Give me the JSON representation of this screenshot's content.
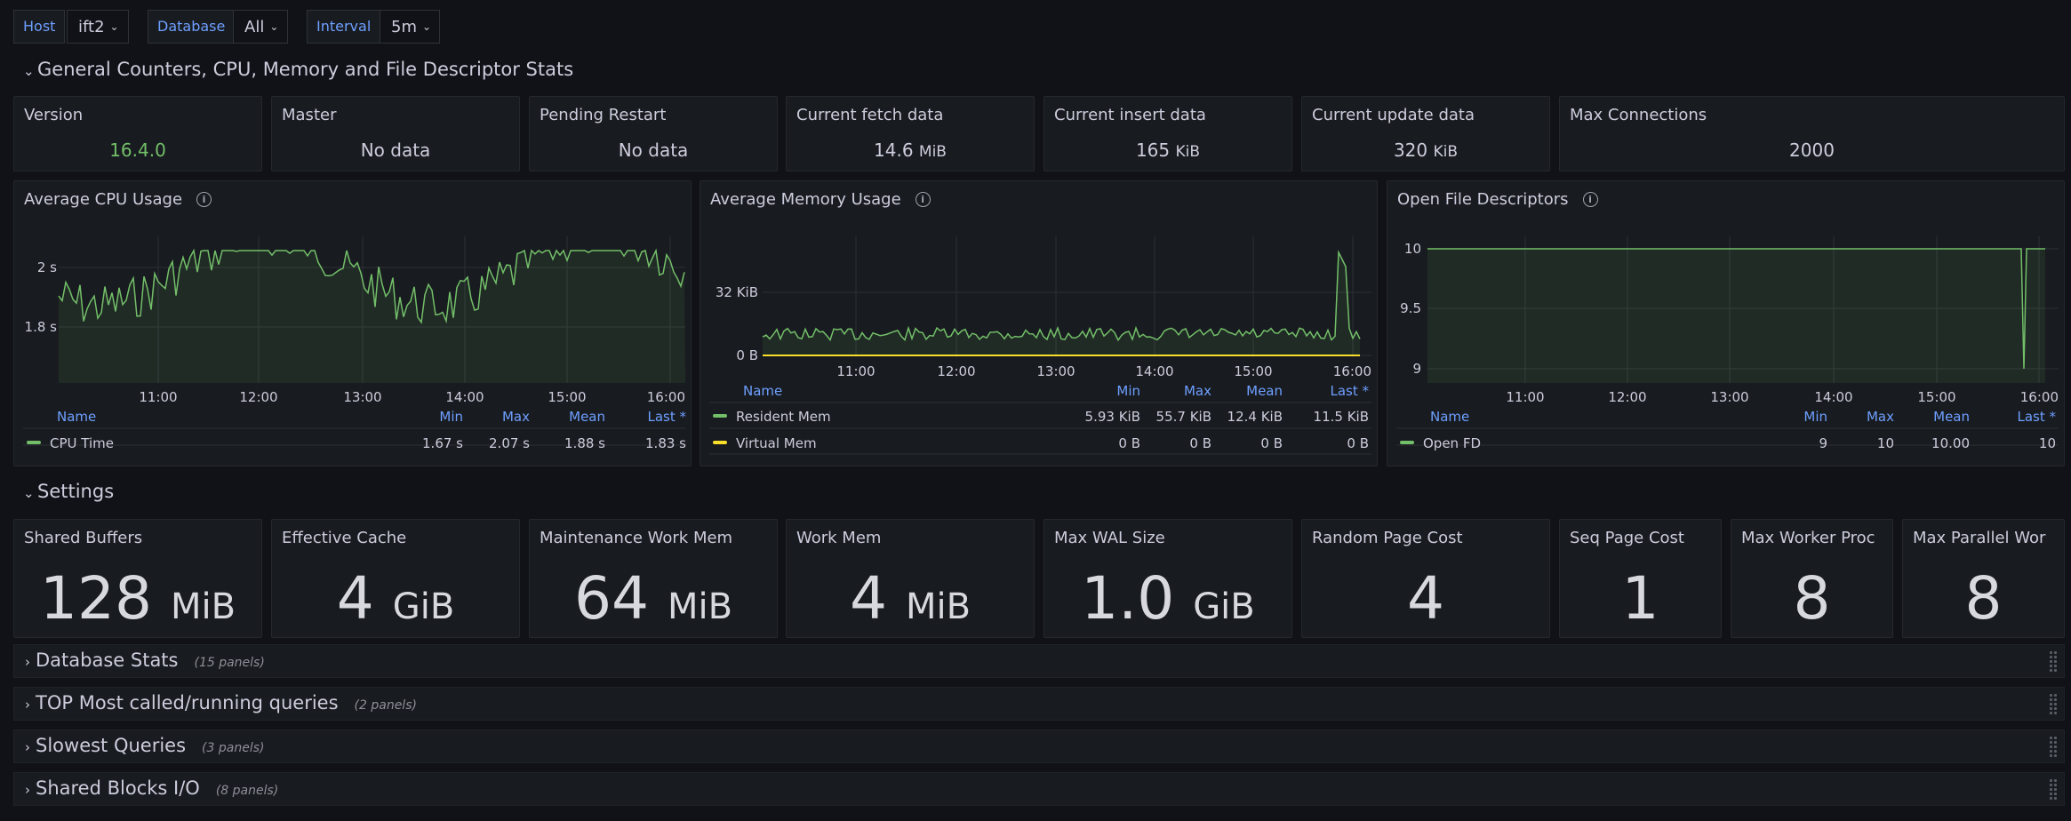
{
  "vars": [
    {
      "label": "Host",
      "value": "ift2"
    },
    {
      "label": "Database",
      "value": "All"
    },
    {
      "label": "Interval",
      "value": "5m"
    }
  ],
  "rows": {
    "general": "General Counters, CPU, Memory and File Descriptor Stats",
    "settings": "Settings"
  },
  "stats": [
    {
      "title": "Version",
      "value": "16.4.0",
      "unit": "",
      "color": "#73bf69"
    },
    {
      "title": "Master",
      "value": "No data",
      "unit": ""
    },
    {
      "title": "Pending Restart",
      "value": "No data",
      "unit": ""
    },
    {
      "title": "Current fetch data",
      "value": "14.6",
      "unit": "MiB"
    },
    {
      "title": "Current insert data",
      "value": "165",
      "unit": "KiB"
    },
    {
      "title": "Current update data",
      "value": "320",
      "unit": "KiB"
    },
    {
      "title": "Max Connections",
      "value": "2000",
      "unit": ""
    }
  ],
  "legend_headers": [
    "Name",
    "Min",
    "Max",
    "Mean",
    "Last *"
  ],
  "cpu": {
    "title": "Average CPU Usage",
    "yticks": [
      "2 s",
      "1.8 s"
    ],
    "xticks": [
      "11:00",
      "12:00",
      "13:00",
      "14:00",
      "15:00",
      "16:00"
    ],
    "legend": [
      {
        "name": "CPU Time",
        "min": "1.67 s",
        "max": "2.07 s",
        "mean": "1.88 s",
        "last": "1.83 s",
        "color": "#73bf69"
      }
    ]
  },
  "mem": {
    "title": "Average Memory Usage",
    "yticks": [
      "32 KiB",
      "0 B"
    ],
    "xticks": [
      "11:00",
      "12:00",
      "13:00",
      "14:00",
      "15:00",
      "16:00"
    ],
    "legend": [
      {
        "name": "Resident Mem",
        "min": "5.93 KiB",
        "max": "55.7 KiB",
        "mean": "12.4 KiB",
        "last": "11.5 KiB",
        "color": "#73bf69"
      },
      {
        "name": "Virtual Mem",
        "min": "0 B",
        "max": "0 B",
        "mean": "0 B",
        "last": "0 B",
        "color": "#fade2a"
      }
    ]
  },
  "fd": {
    "title": "Open File Descriptors",
    "yticks": [
      "10",
      "9.5",
      "9"
    ],
    "xticks": [
      "11:00",
      "12:00",
      "13:00",
      "14:00",
      "15:00",
      "16:00"
    ],
    "legend": [
      {
        "name": "Open FD",
        "min": "9",
        "max": "10",
        "mean": "10.00",
        "last": "10",
        "color": "#73bf69"
      }
    ]
  },
  "settings": [
    {
      "title": "Shared Buffers",
      "value": "128",
      "unit": "MiB"
    },
    {
      "title": "Effective Cache",
      "value": "4",
      "unit": "GiB"
    },
    {
      "title": "Maintenance Work Mem",
      "value": "64",
      "unit": "MiB"
    },
    {
      "title": "Work Mem",
      "value": "4",
      "unit": "MiB"
    },
    {
      "title": "Max WAL Size",
      "value": "1.0",
      "unit": "GiB"
    },
    {
      "title": "Random Page Cost",
      "value": "4",
      "unit": ""
    },
    {
      "title": "Seq Page Cost",
      "value": "1",
      "unit": ""
    },
    {
      "title": "Max Worker Proc",
      "value": "8",
      "unit": ""
    },
    {
      "title": "Max Parallel Wor",
      "value": "8",
      "unit": ""
    }
  ],
  "collapsed": [
    {
      "title": "Database Stats",
      "note": "(15 panels)"
    },
    {
      "title": "TOP Most called/running queries",
      "note": "(2 panels)"
    },
    {
      "title": "Slowest Queries",
      "note": "(3 panels)"
    },
    {
      "title": "Shared Blocks I/O",
      "note": "(8 panels)"
    }
  ]
}
